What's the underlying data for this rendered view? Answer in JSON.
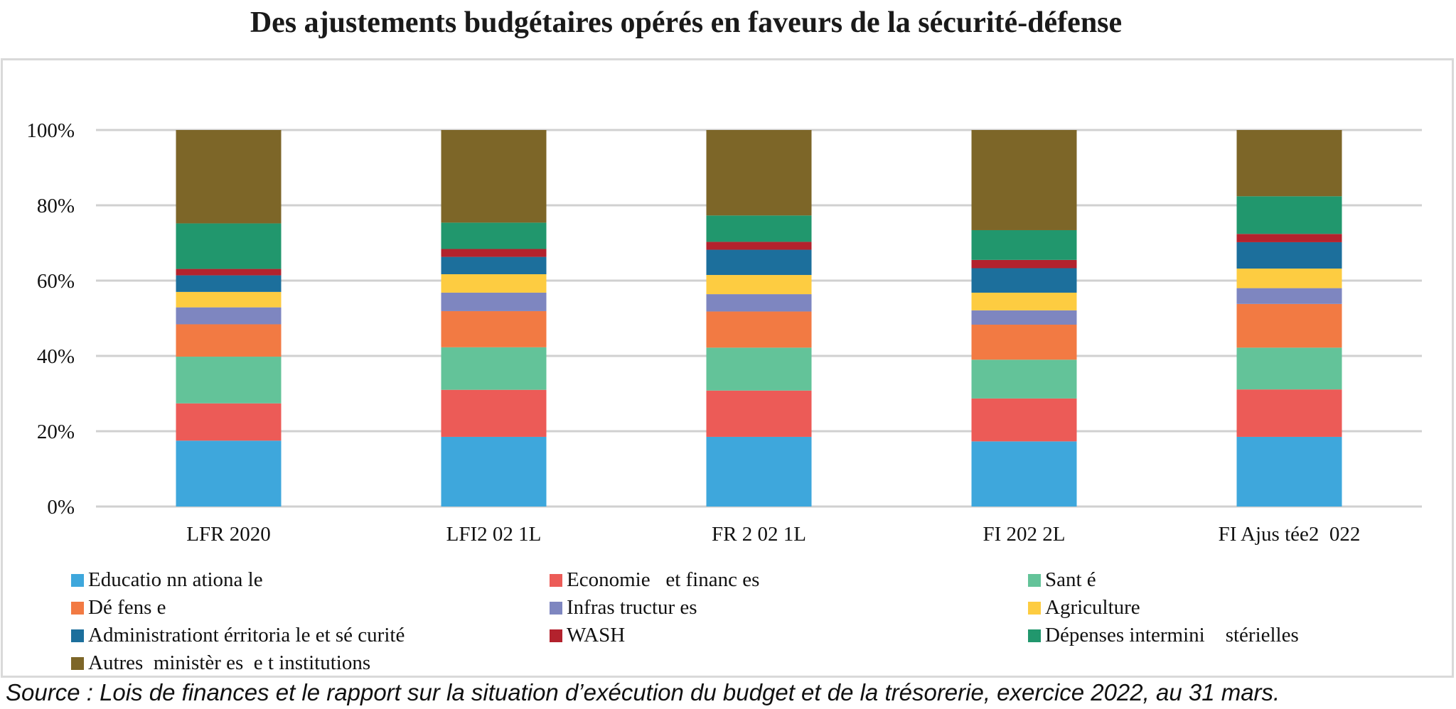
{
  "chart_data": {
    "type": "bar",
    "stacked": true,
    "percent": true,
    "title": "Des ajustements budgétaires opérés en faveurs de la sécurité-défense",
    "xlabel": "",
    "ylabel": "",
    "ylim": [
      0,
      100
    ],
    "yticks": [
      "0%",
      "20%",
      "40%",
      "60%",
      "80%",
      "100%"
    ],
    "grid": true,
    "legend_position": "bottom",
    "categories": [
      "LFR 2020",
      "LFI2 02 1L",
      "FR 2 02 1L",
      "FI 202 2L",
      "FI Ajus tée2  022"
    ],
    "series": [
      {
        "name": "Educatio nn ationa le",
        "color": "#3ea7dc",
        "values": [
          17.5,
          18.5,
          18.5,
          17.3,
          18.5
        ]
      },
      {
        "name": "Economie   et financ es",
        "color": "#ec5b57",
        "values": [
          9.9,
          12.5,
          12.3,
          11.4,
          12.6
        ]
      },
      {
        "name": "Sant é",
        "color": "#63c399",
        "values": [
          12.4,
          11.3,
          11.4,
          10.3,
          11.1
        ]
      },
      {
        "name": "Dé fens e",
        "color": "#f27a43",
        "values": [
          8.6,
          9.6,
          9.6,
          9.3,
          11.6
        ]
      },
      {
        "name": "Infras tructur es",
        "color": "#7e86c0",
        "values": [
          4.5,
          4.9,
          4.6,
          3.8,
          4.2
        ]
      },
      {
        "name": "Agriculture",
        "color": "#fdcc41",
        "values": [
          4.1,
          4.9,
          5.1,
          4.7,
          5.2
        ]
      },
      {
        "name": "Administrationt érritoria le et sé curité",
        "color": "#1c6f9c",
        "values": [
          4.4,
          4.6,
          6.7,
          6.5,
          7.0
        ]
      },
      {
        "name": "WASH",
        "color": "#b3222d",
        "values": [
          1.7,
          2.1,
          2.1,
          2.2,
          2.2
        ]
      },
      {
        "name": "Dépenses intermini    stérielles",
        "color": "#21976d",
        "values": [
          12.1,
          7.0,
          7.0,
          7.9,
          10.0
        ]
      },
      {
        "name": "Autres  ministèr es  e t institutions",
        "color": "#7d6628",
        "values": [
          24.8,
          24.6,
          22.7,
          26.6,
          17.6
        ]
      }
    ]
  },
  "source_text": "Source : Lois de finances et le rapport sur la situation d’exécution du budget et de la trésorerie, exercice 2022, au 31 mars."
}
